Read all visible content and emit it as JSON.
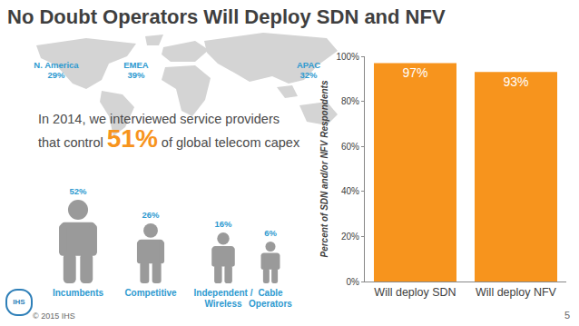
{
  "title": "No Doubt Operators Will Deploy SDN and NFV",
  "regions": [
    {
      "name": "N. America",
      "share": "29%"
    },
    {
      "name": "EMEA",
      "share": "39%"
    },
    {
      "name": "APAC",
      "share": "32%"
    }
  ],
  "statement": {
    "before": "In 2014, we interviewed service providers\nthat control ",
    "highlight": "51%",
    "after": " of global telecom capex"
  },
  "segments": [
    {
      "name": "Incumbents",
      "share": "52%"
    },
    {
      "name": "Competitive",
      "share": "26%"
    },
    {
      "name": "Independent /\nWireless",
      "share": "16%"
    },
    {
      "name": "Cable\nOperators",
      "share": "6%"
    }
  ],
  "footer": "© 2015 IHS",
  "logo": "IHS",
  "page": "5",
  "chart_data": {
    "type": "bar",
    "categories": [
      "Will deploy SDN",
      "Will deploy NFV"
    ],
    "values": [
      97,
      93
    ],
    "value_labels": [
      "97%",
      "93%"
    ],
    "data_labels": true,
    "color": "#f7941d",
    "y_label": "Percent of SDN and/or NFV Respondents",
    "ylim": [
      0,
      100
    ],
    "yticks": [
      {
        "value": 0,
        "label": "0%"
      },
      {
        "value": 20,
        "label": "20%"
      },
      {
        "value": 40,
        "label": "40%"
      },
      {
        "value": 60,
        "label": "60%"
      },
      {
        "value": 80,
        "label": "80%"
      },
      {
        "value": 100,
        "label": "100%"
      }
    ],
    "grid": false
  }
}
